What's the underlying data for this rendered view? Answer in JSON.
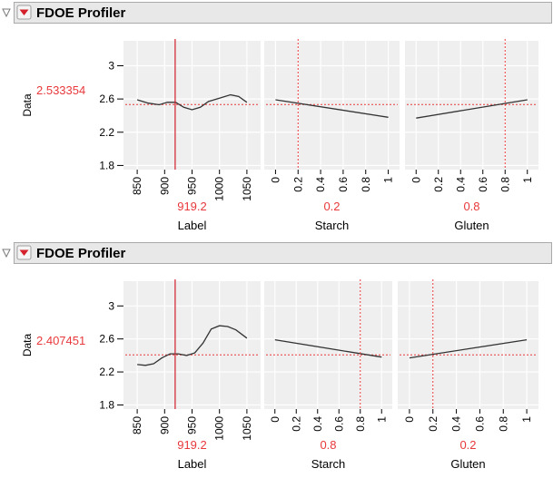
{
  "profilers": [
    {
      "title": "FDOE Profiler",
      "response": {
        "label": "Data",
        "current_value": "2.533354",
        "value": 2.533354,
        "ylim": [
          1.75,
          3.3
        ],
        "ticks": [
          "1.8",
          "2.2",
          "2.6",
          "3"
        ],
        "tick_values": [
          1.8,
          2.2,
          2.6,
          3.0
        ]
      },
      "factors": [
        {
          "name": "Label",
          "current": "919.2",
          "current_value": 919.2,
          "xlim": [
            825,
            1075
          ],
          "ticks": [
            "850",
            "900",
            "950",
            "1000",
            "1050"
          ],
          "tick_values": [
            850,
            900,
            950,
            1000,
            1050
          ],
          "line_style": "solid",
          "curve": {
            "x": [
              850,
              870,
              890,
              905,
              920,
              935,
              950,
              965,
              980,
              1000,
              1020,
              1035,
              1050
            ],
            "y": [
              2.59,
              2.55,
              2.53,
              2.56,
              2.56,
              2.5,
              2.47,
              2.5,
              2.57,
              2.61,
              2.65,
              2.63,
              2.56
            ]
          }
        },
        {
          "name": "Starch",
          "current": "0.2",
          "current_value": 0.2,
          "xlim": [
            -0.1,
            1.1
          ],
          "ticks": [
            "0",
            "0.2",
            "0.4",
            "0.6",
            "0.8",
            "1"
          ],
          "tick_values": [
            0,
            0.2,
            0.4,
            0.6,
            0.8,
            1
          ],
          "line_style": "dotted",
          "curve": {
            "x": [
              0,
              1
            ],
            "y": [
              2.59,
              2.38
            ]
          }
        },
        {
          "name": "Gluten",
          "current": "0.8",
          "current_value": 0.8,
          "xlim": [
            -0.1,
            1.1
          ],
          "ticks": [
            "0",
            "0.2",
            "0.4",
            "0.6",
            "0.8",
            "1"
          ],
          "tick_values": [
            0,
            0.2,
            0.4,
            0.6,
            0.8,
            1
          ],
          "line_style": "dotted",
          "curve": {
            "x": [
              0,
              1
            ],
            "y": [
              2.37,
              2.59
            ]
          }
        }
      ]
    },
    {
      "title": "FDOE Profiler",
      "response": {
        "label": "Data",
        "current_value": "2.407451",
        "value": 2.407451,
        "ylim": [
          1.75,
          3.3
        ],
        "ticks": [
          "1.8",
          "2.2",
          "2.6",
          "3"
        ],
        "tick_values": [
          1.8,
          2.2,
          2.6,
          3.0
        ]
      },
      "factors": [
        {
          "name": "Label",
          "current": "919.2",
          "current_value": 919.2,
          "xlim": [
            825,
            1075
          ],
          "ticks": [
            "850",
            "900",
            "950",
            "1000",
            "1050"
          ],
          "tick_values": [
            850,
            900,
            950,
            1000,
            1050
          ],
          "line_style": "solid",
          "curve": {
            "x": [
              850,
              865,
              880,
              895,
              910,
              925,
              940,
              955,
              970,
              985,
              1000,
              1015,
              1030,
              1050
            ],
            "y": [
              2.29,
              2.28,
              2.3,
              2.37,
              2.42,
              2.42,
              2.4,
              2.43,
              2.55,
              2.72,
              2.76,
              2.75,
              2.71,
              2.61
            ]
          }
        },
        {
          "name": "Starch",
          "current": "0.8",
          "current_value": 0.8,
          "xlim": [
            -0.1,
            1.1
          ],
          "ticks": [
            "0",
            "0.2",
            "0.4",
            "0.6",
            "0.8",
            "1"
          ],
          "tick_values": [
            0,
            0.2,
            0.4,
            0.6,
            0.8,
            1
          ],
          "line_style": "dotted",
          "curve": {
            "x": [
              0,
              1
            ],
            "y": [
              2.59,
              2.38
            ]
          }
        },
        {
          "name": "Gluten",
          "current": "0.2",
          "current_value": 0.2,
          "xlim": [
            -0.1,
            1.1
          ],
          "ticks": [
            "0",
            "0.2",
            "0.4",
            "0.6",
            "0.8",
            "1"
          ],
          "tick_values": [
            0,
            0.2,
            0.4,
            0.6,
            0.8,
            1
          ],
          "line_style": "dotted",
          "curve": {
            "x": [
              0,
              1
            ],
            "y": [
              2.37,
              2.59
            ]
          }
        }
      ]
    }
  ],
  "chart_data": [
    {
      "type": "line",
      "title": "FDOE Profiler",
      "ylabel": "Data",
      "ylim": [
        1.75,
        3.3
      ],
      "series": [
        {
          "name": "Label",
          "x": [
            850,
            870,
            890,
            905,
            920,
            935,
            950,
            965,
            980,
            1000,
            1020,
            1035,
            1050
          ],
          "values": [
            2.59,
            2.55,
            2.53,
            2.56,
            2.56,
            2.5,
            2.47,
            2.5,
            2.57,
            2.61,
            2.65,
            2.63,
            2.56
          ]
        },
        {
          "name": "Starch",
          "x": [
            0,
            1
          ],
          "values": [
            2.59,
            2.38
          ]
        },
        {
          "name": "Gluten",
          "x": [
            0,
            1
          ],
          "values": [
            2.37,
            2.59
          ]
        }
      ],
      "current": {
        "Data": 2.533354,
        "Label": 919.2,
        "Starch": 0.2,
        "Gluten": 0.8
      },
      "grid": true
    },
    {
      "type": "line",
      "title": "FDOE Profiler",
      "ylabel": "Data",
      "ylim": [
        1.75,
        3.3
      ],
      "series": [
        {
          "name": "Label",
          "x": [
            850,
            865,
            880,
            895,
            910,
            925,
            940,
            955,
            970,
            985,
            1000,
            1015,
            1030,
            1050
          ],
          "values": [
            2.29,
            2.28,
            2.3,
            2.37,
            2.42,
            2.42,
            2.4,
            2.43,
            2.55,
            2.72,
            2.76,
            2.75,
            2.71,
            2.61
          ]
        },
        {
          "name": "Starch",
          "x": [
            0,
            1
          ],
          "values": [
            2.59,
            2.38
          ]
        },
        {
          "name": "Gluten",
          "x": [
            0,
            1
          ],
          "values": [
            2.37,
            2.59
          ]
        }
      ],
      "current": {
        "Data": 2.407451,
        "Label": 919.2,
        "Starch": 0.8,
        "Gluten": 0.2
      },
      "grid": true
    }
  ],
  "colors": {
    "accent_red": "#e8383b",
    "panel": "#efefef",
    "header": "#e8e8e8",
    "curve": "#333333"
  }
}
